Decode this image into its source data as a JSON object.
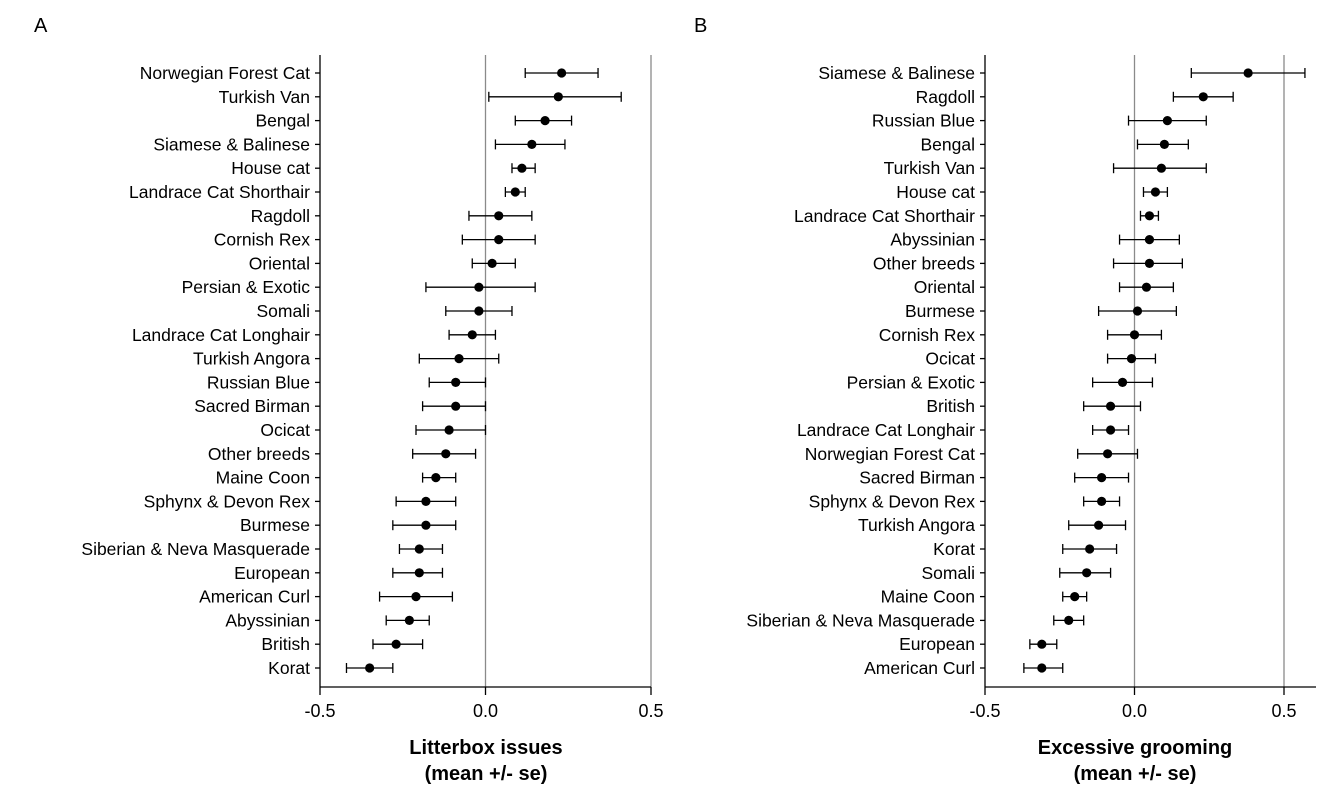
{
  "chart_data": [
    {
      "type": "scatter",
      "panel_label": "A",
      "xlabel_line1": "Litterbox issues",
      "xlabel_line2": "(mean +/- se)",
      "xlim": [
        -0.5,
        0.5
      ],
      "xticks": [
        "-0.5",
        "0.0",
        "0.5"
      ],
      "reference_lines": [
        0.0,
        0.5
      ],
      "grid": false,
      "categories": [
        "Norwegian Forest Cat",
        "Turkish Van",
        "Bengal",
        "Siamese & Balinese",
        "House cat",
        "Landrace Cat Shorthair",
        "Ragdoll",
        "Cornish Rex",
        "Oriental",
        "Persian & Exotic",
        "Somali",
        "Landrace Cat Longhair",
        "Turkish Angora",
        "Russian Blue",
        "Sacred Birman",
        "Ocicat",
        "Other breeds",
        "Maine Coon",
        "Sphynx & Devon Rex",
        "Burmese",
        "Siberian & Neva Masquerade",
        "European",
        "American Curl",
        "Abyssinian",
        "British",
        "Korat"
      ],
      "mean": [
        0.23,
        0.22,
        0.18,
        0.14,
        0.11,
        0.09,
        0.04,
        0.04,
        0.02,
        -0.02,
        -0.02,
        -0.04,
        -0.08,
        -0.09,
        -0.09,
        -0.11,
        -0.12,
        -0.15,
        -0.18,
        -0.18,
        -0.2,
        -0.2,
        -0.21,
        -0.23,
        -0.27,
        -0.35
      ],
      "se_low": [
        0.12,
        0.01,
        0.09,
        0.03,
        0.08,
        0.06,
        -0.05,
        -0.07,
        -0.04,
        -0.18,
        -0.12,
        -0.11,
        -0.2,
        -0.17,
        -0.19,
        -0.21,
        -0.22,
        -0.19,
        -0.27,
        -0.28,
        -0.26,
        -0.28,
        -0.32,
        -0.3,
        -0.34,
        -0.42
      ],
      "se_high": [
        0.34,
        0.41,
        0.26,
        0.24,
        0.15,
        0.12,
        0.14,
        0.15,
        0.09,
        0.15,
        0.08,
        0.03,
        0.04,
        0.0,
        0.0,
        0.0,
        -0.03,
        -0.09,
        -0.09,
        -0.09,
        -0.13,
        -0.13,
        -0.1,
        -0.17,
        -0.19,
        -0.28
      ]
    },
    {
      "type": "scatter",
      "panel_label": "B",
      "xlabel_line1": "Excessive grooming",
      "xlabel_line2": "(mean +/- se)",
      "xlim": [
        -0.5,
        0.6
      ],
      "xticks": [
        "-0.5",
        "0.0",
        "0.5"
      ],
      "reference_lines": [
        0.0,
        0.5
      ],
      "grid": false,
      "categories": [
        "Siamese & Balinese",
        "Ragdoll",
        "Russian Blue",
        "Bengal",
        "Turkish Van",
        "House cat",
        "Landrace Cat Shorthair",
        "Abyssinian",
        "Other breeds",
        "Oriental",
        "Burmese",
        "Cornish Rex",
        "Ocicat",
        "Persian & Exotic",
        "British",
        "Landrace Cat Longhair",
        "Norwegian Forest Cat",
        "Sacred Birman",
        "Sphynx & Devon Rex",
        "Turkish Angora",
        "Korat",
        "Somali",
        "Maine Coon",
        "Siberian & Neva Masquerade",
        "European",
        "American Curl"
      ],
      "mean": [
        0.38,
        0.23,
        0.11,
        0.1,
        0.09,
        0.07,
        0.05,
        0.05,
        0.05,
        0.04,
        0.01,
        0.0,
        -0.01,
        -0.04,
        -0.08,
        -0.08,
        -0.09,
        -0.11,
        -0.11,
        -0.12,
        -0.15,
        -0.16,
        -0.2,
        -0.22,
        -0.31,
        -0.31
      ],
      "se_low": [
        0.19,
        0.13,
        -0.02,
        0.01,
        -0.07,
        0.03,
        0.02,
        -0.05,
        -0.07,
        -0.05,
        -0.12,
        -0.09,
        -0.09,
        -0.14,
        -0.17,
        -0.14,
        -0.19,
        -0.2,
        -0.17,
        -0.22,
        -0.24,
        -0.25,
        -0.24,
        -0.27,
        -0.35,
        -0.37
      ],
      "se_high": [
        0.57,
        0.33,
        0.24,
        0.18,
        0.24,
        0.11,
        0.08,
        0.15,
        0.16,
        0.13,
        0.14,
        0.09,
        0.07,
        0.06,
        0.02,
        -0.02,
        0.01,
        -0.02,
        -0.05,
        -0.03,
        -0.06,
        -0.08,
        -0.16,
        -0.17,
        -0.26,
        -0.24
      ]
    }
  ]
}
